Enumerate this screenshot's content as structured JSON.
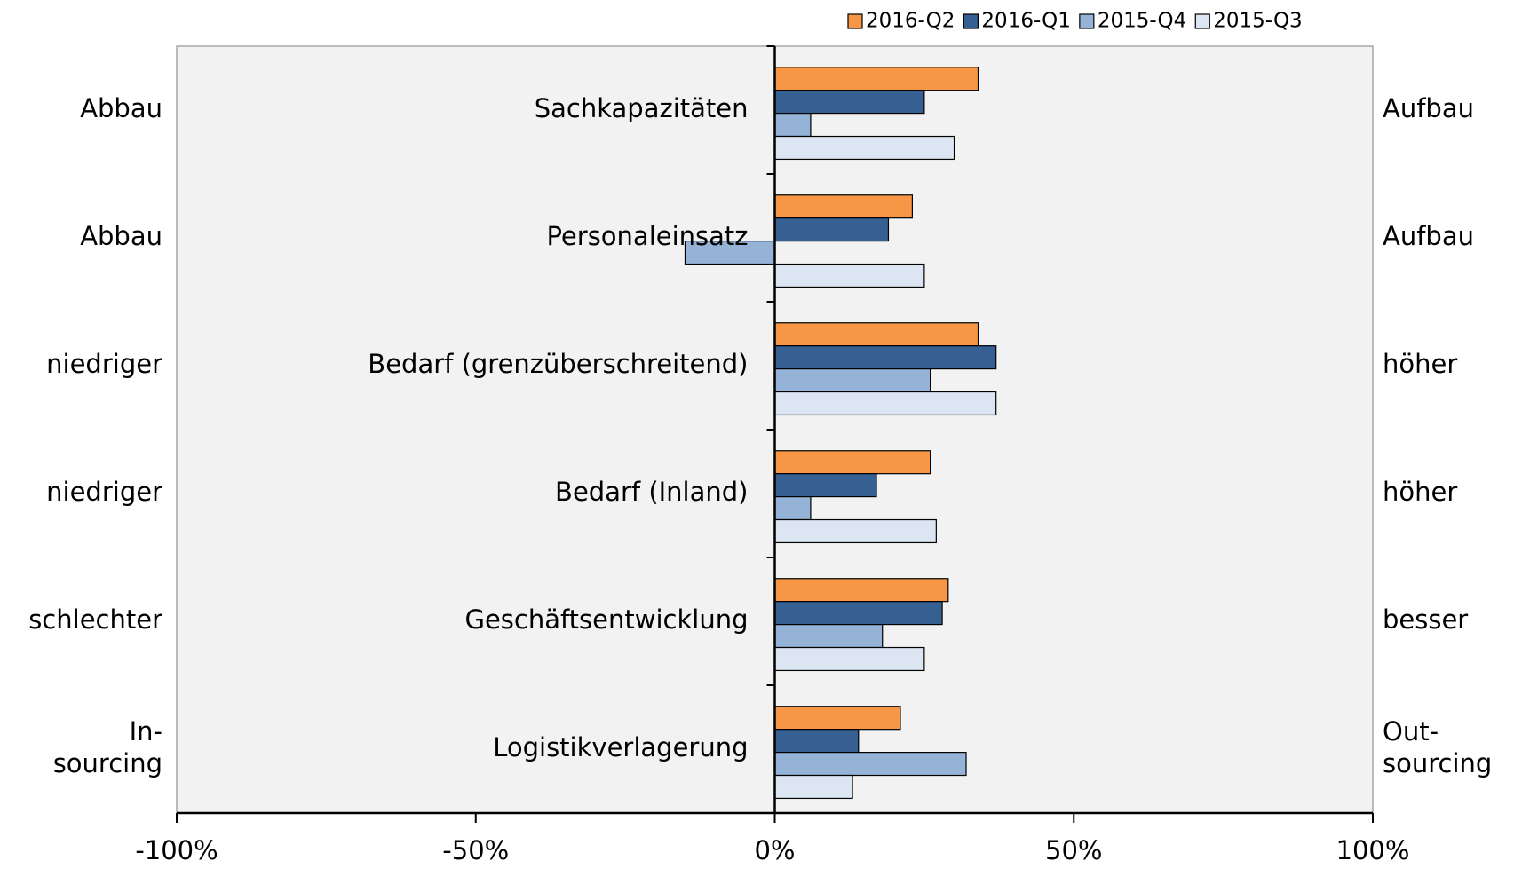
{
  "chart_data": {
    "type": "bar",
    "orientation": "horizontal",
    "categories": [
      "Sachkapazitäten",
      "Personaleinsatz",
      "Bedarf (grenzüberschreitend)",
      "Bedarf (Inland)",
      "Geschäftsentwicklung",
      "Logistikverlagerung"
    ],
    "left_labels": [
      [
        "Abbau"
      ],
      [
        "Abbau"
      ],
      [
        "niedriger"
      ],
      [
        "niedriger"
      ],
      [
        "schlechter"
      ],
      [
        "In-",
        "sourcing"
      ]
    ],
    "right_labels": [
      [
        "Aufbau"
      ],
      [
        "Aufbau"
      ],
      [
        "höher"
      ],
      [
        "höher"
      ],
      [
        "besser"
      ],
      [
        "Out-",
        "sourcing"
      ]
    ],
    "series": [
      {
        "name": "2016-Q2",
        "color": "#f79646",
        "values": [
          34,
          23,
          34,
          26,
          29,
          21
        ]
      },
      {
        "name": "2016-Q1",
        "color": "#376092",
        "values": [
          25,
          19,
          37,
          17,
          28,
          14
        ]
      },
      {
        "name": "2015-Q4",
        "color": "#95b3d7",
        "values": [
          6,
          -15,
          26,
          6,
          18,
          32
        ]
      },
      {
        "name": "2015-Q3",
        "color": "#dce6f2",
        "values": [
          30,
          25,
          37,
          27,
          25,
          13
        ]
      }
    ],
    "xlim": [
      -100,
      100
    ],
    "xticks": [
      {
        "value": -100,
        "label": "-100%"
      },
      {
        "value": -50,
        "label": "-50%"
      },
      {
        "value": 0,
        "label": "0%"
      },
      {
        "value": 50,
        "label": "50%"
      },
      {
        "value": 100,
        "label": "100%"
      }
    ],
    "legend": "top-right"
  }
}
